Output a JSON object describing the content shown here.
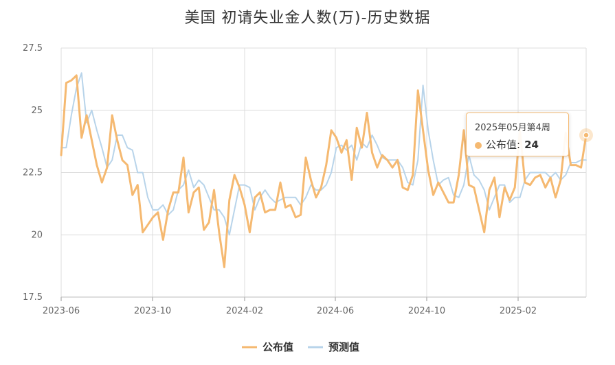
{
  "chart_data": {
    "type": "line",
    "title": "美国 初请失业金人数(万)-历史数据",
    "ylim": [
      17.5,
      27.5
    ],
    "y_ticks": [
      "27.5",
      "25",
      "22.5",
      "20",
      "17.5"
    ],
    "x_ticks": [
      "2023-06",
      "2023-10",
      "2024-02",
      "2024-06",
      "2024-10",
      "2025-02"
    ],
    "grid": true,
    "legend_position": "bottom",
    "colors": {
      "published": "#f5b971",
      "forecast": "#b8d4ea"
    },
    "series": [
      {
        "name": "公布值",
        "values": [
          23.2,
          26.1,
          26.2,
          26.4,
          23.9,
          24.8,
          23.8,
          22.8,
          22.1,
          22.7,
          24.8,
          23.8,
          23.0,
          22.8,
          21.6,
          22.0,
          20.1,
          20.4,
          20.7,
          20.9,
          19.8,
          21.0,
          21.7,
          21.7,
          23.1,
          20.9,
          21.7,
          21.9,
          20.2,
          20.5,
          21.8,
          20.1,
          18.7,
          21.4,
          22.4,
          21.9,
          21.2,
          20.1,
          21.5,
          21.7,
          20.9,
          21.0,
          21.0,
          22.1,
          21.1,
          21.2,
          20.7,
          20.8,
          23.1,
          22.2,
          21.5,
          21.9,
          22.8,
          24.2,
          23.9,
          23.3,
          23.8,
          22.2,
          24.3,
          23.5,
          24.9,
          23.3,
          22.7,
          23.2,
          23.0,
          22.7,
          23.0,
          21.9,
          21.8,
          22.4,
          25.8,
          24.2,
          22.6,
          21.6,
          22.1,
          21.7,
          21.3,
          21.3,
          22.4,
          24.2,
          22.0,
          21.9,
          21.0,
          20.1,
          21.8,
          22.3,
          20.7,
          21.9,
          21.4,
          21.9,
          24.2,
          22.1,
          22.0,
          22.3,
          22.4,
          21.9,
          22.3,
          21.5,
          22.2,
          24.1,
          22.8,
          22.8,
          22.7,
          24.0
        ]
      },
      {
        "name": "预测值",
        "values": [
          23.5,
          23.5,
          24.8,
          25.9,
          26.5,
          24.5,
          25.0,
          24.2,
          23.5,
          22.7,
          23.0,
          24.0,
          24.0,
          23.5,
          23.4,
          22.5,
          22.5,
          21.5,
          21.0,
          21.0,
          21.2,
          20.8,
          21.0,
          21.8,
          22.0,
          22.6,
          21.9,
          22.2,
          22.0,
          21.5,
          21.0,
          21.0,
          20.7,
          20.0,
          21.0,
          22.0,
          22.0,
          21.9,
          21.0,
          21.5,
          21.8,
          21.5,
          21.3,
          21.4,
          21.5,
          21.5,
          21.5,
          21.2,
          21.5,
          22.0,
          21.8,
          21.8,
          22.0,
          22.5,
          23.5,
          23.6,
          23.4,
          23.6,
          23.0,
          23.7,
          23.5,
          24.0,
          23.6,
          23.1,
          23.0,
          23.0,
          23.0,
          22.7,
          22.1,
          22.0,
          23.0,
          26.0,
          24.2,
          23.0,
          22.0,
          22.2,
          22.3,
          21.6,
          21.5,
          22.0,
          23.2,
          22.4,
          22.2,
          21.8,
          21.0,
          21.5,
          22.0,
          22.0,
          21.3,
          21.5,
          21.5,
          22.2,
          22.5,
          22.5,
          22.5,
          22.5,
          22.3,
          22.5,
          22.2,
          22.4,
          22.9,
          22.9,
          23.0,
          23.0
        ]
      }
    ]
  },
  "tooltip": {
    "date": "2025年05月第4周",
    "series_label": "公布值:",
    "value": "24"
  }
}
